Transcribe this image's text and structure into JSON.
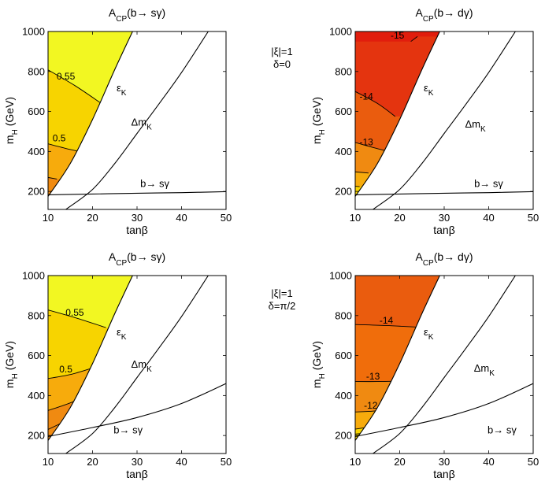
{
  "figure": {
    "parameter_labels": [
      {
        "line1": "|ξ|=1",
        "line2": "δ=0"
      },
      {
        "line1": "|ξ|=1",
        "line2": "δ=π/2"
      }
    ]
  },
  "colors": {
    "yellow_1": "#f2f722",
    "yellow_2": "#f7d400",
    "orange_1": "#f7ab0c",
    "orange_2": "#f08a11",
    "red_orange_1": "#f06d0b",
    "red_orange_2": "#ea5c0e",
    "red_1": "#e4340f",
    "red_2": "#e11d0d",
    "line": "#000000"
  },
  "chart_data": [
    {
      "type": "contour",
      "title_main": "A",
      "title_sub": "CP",
      "title_arg": "(b→ sγ)",
      "xlabel": "tanβ",
      "ylabel_main": "m",
      "ylabel_sub": "H",
      "ylabel_unit": " (GeV)",
      "xlim": [
        10,
        50
      ],
      "ylim": [
        110,
        1000
      ],
      "xticks": [
        "10",
        "20",
        "30",
        "40",
        "50"
      ],
      "yticks": [
        "200",
        "400",
        "600",
        "800",
        "1000"
      ],
      "bands": [
        {
          "color": "yellow_1",
          "from_top": 1000,
          "to_boundary": "contour_055",
          "label": "0.55"
        },
        {
          "color": "yellow_2",
          "from_boundary": "contour_055",
          "to_boundary": "contour_05",
          "label": "0.5"
        },
        {
          "color": "orange_1",
          "from_boundary": "contour_05",
          "to_boundary": "contour_045"
        },
        {
          "color": "orange_2",
          "from_boundary": "contour_045",
          "to_boundary": "bottom"
        }
      ],
      "contours": {
        "contour_055": {
          "label": "0.55",
          "points": [
            [
              10,
              808
            ],
            [
              16,
              730
            ],
            [
              22,
              640
            ]
          ]
        },
        "contour_05": {
          "label": "0.5",
          "points": [
            [
              10,
              438
            ],
            [
              14,
              415
            ],
            [
              17.5,
              398
            ]
          ]
        },
        "contour_045": {
          "label": "",
          "points": [
            [
              10,
              270
            ],
            [
              12,
              262
            ]
          ]
        }
      },
      "curves": [
        {
          "name": "epsilon_K",
          "label_main": "ε",
          "label_sub": "K",
          "points": [
            [
              10,
              175
            ],
            [
              15,
              340
            ],
            [
              20,
              560
            ],
            [
              25,
              810
            ],
            [
              29,
              1000
            ]
          ]
        },
        {
          "name": "delta_m_K",
          "label_main": "Δm",
          "label_sub": "K",
          "points": [
            [
              14,
              110
            ],
            [
              20,
              210
            ],
            [
              25,
              340
            ],
            [
              30,
              490
            ],
            [
              35,
              640
            ],
            [
              40,
              795
            ],
            [
              46,
              1000
            ]
          ]
        },
        {
          "name": "b_to_s_gamma",
          "label": "b→ sγ",
          "points": [
            [
              10,
              183
            ],
            [
              20,
              187
            ],
            [
              30,
              191
            ],
            [
              40,
              194
            ],
            [
              50,
              199
            ]
          ]
        }
      ],
      "allowed_region": "left_of_epsilon_K"
    },
    {
      "type": "contour",
      "title_main": "A",
      "title_sub": "CP",
      "title_arg": "(b→ dγ)",
      "xlabel": "tanβ",
      "ylabel_main": "m",
      "ylabel_sub": "H",
      "ylabel_unit": " (GeV)",
      "xlim": [
        10,
        50
      ],
      "ylim": [
        110,
        1000
      ],
      "xticks": [
        "10",
        "20",
        "30",
        "40",
        "50"
      ],
      "yticks": [
        "200",
        "400",
        "600",
        "800",
        "1000"
      ],
      "bands": [
        {
          "color": "red_2",
          "label": "-15"
        },
        {
          "color": "red_1",
          "label": "-14"
        },
        {
          "color": "red_orange_2",
          "label": "-13"
        },
        {
          "color": "orange_2"
        },
        {
          "color": "orange_1"
        },
        {
          "color": "yellow_2"
        }
      ],
      "contours": {
        "c_m15": {
          "label": "-15",
          "points": [
            [
              22.5,
              950
            ],
            [
              24,
              975
            ]
          ]
        },
        "c_m14": {
          "label": "-14",
          "points": [
            [
              10,
              700
            ],
            [
              15,
              640
            ],
            [
              19,
              575
            ]
          ]
        },
        "c_m13": {
          "label": "-13",
          "points": [
            [
              10,
              445
            ],
            [
              14,
              420
            ],
            [
              17.5,
              400
            ]
          ]
        },
        "c_m12": {
          "label": "",
          "points": [
            [
              10,
              298
            ],
            [
              13,
              292
            ]
          ]
        },
        "c_m11": {
          "label": "",
          "points": [
            [
              10,
              226
            ],
            [
              11,
              224
            ]
          ]
        }
      },
      "curves": [
        {
          "name": "epsilon_K",
          "label_main": "ε",
          "label_sub": "K",
          "points": [
            [
              10,
              175
            ],
            [
              15,
              340
            ],
            [
              20,
              560
            ],
            [
              25,
              810
            ],
            [
              29,
              1000
            ]
          ]
        },
        {
          "name": "delta_m_K",
          "label_main": "Δm",
          "label_sub": "K",
          "points": [
            [
              14,
              110
            ],
            [
              20,
              210
            ],
            [
              25,
              340
            ],
            [
              30,
              490
            ],
            [
              35,
              640
            ],
            [
              40,
              795
            ],
            [
              46,
              1000
            ]
          ]
        },
        {
          "name": "b_to_s_gamma",
          "label": "b→ sγ",
          "points": [
            [
              10,
              183
            ],
            [
              20,
              187
            ],
            [
              30,
              191
            ],
            [
              40,
              194
            ],
            [
              50,
              199
            ]
          ]
        }
      ],
      "allowed_region": "left_of_epsilon_K"
    },
    {
      "type": "contour",
      "title_main": "A",
      "title_sub": "CP",
      "title_arg": "(b→ sγ)",
      "xlabel": "tanβ",
      "ylabel_main": "m",
      "ylabel_sub": "H",
      "ylabel_unit": " (GeV)",
      "xlim": [
        10,
        50
      ],
      "ylim": [
        110,
        1000
      ],
      "xticks": [
        "10",
        "20",
        "30",
        "40",
        "50"
      ],
      "yticks": [
        "200",
        "400",
        "600",
        "800",
        "1000"
      ],
      "bands": [
        {
          "color": "yellow_1",
          "label": "0.55"
        },
        {
          "color": "yellow_2",
          "label": "0.5"
        },
        {
          "color": "orange_1"
        },
        {
          "color": "orange_2"
        }
      ],
      "contours": {
        "contour_055": {
          "label": "0.55",
          "points": [
            [
              10,
              828
            ],
            [
              16,
              790
            ],
            [
              23,
              740
            ]
          ]
        },
        "contour_05": {
          "label": "0.5",
          "points": [
            [
              10,
              485
            ],
            [
              15,
              505
            ],
            [
              20,
              538
            ]
          ]
        },
        "contour_045": {
          "label": "",
          "points": [
            [
              10,
              325
            ],
            [
              14,
              355
            ],
            [
              18,
              390
            ]
          ]
        },
        "contour_04": {
          "label": "",
          "points": [
            [
              10,
              230
            ],
            [
              13,
              262
            ]
          ]
        }
      },
      "curves": [
        {
          "name": "epsilon_K",
          "label_main": "ε",
          "label_sub": "K",
          "points": [
            [
              10,
              175
            ],
            [
              15,
              340
            ],
            [
              20,
              560
            ],
            [
              25,
              810
            ],
            [
              29,
              1000
            ]
          ]
        },
        {
          "name": "delta_m_K",
          "label_main": "Δm",
          "label_sub": "K",
          "points": [
            [
              14,
              110
            ],
            [
              20,
              210
            ],
            [
              25,
              340
            ],
            [
              30,
              490
            ],
            [
              35,
              640
            ],
            [
              40,
              795
            ],
            [
              46,
              1000
            ]
          ]
        },
        {
          "name": "b_to_s_gamma",
          "label": "b→ sγ",
          "points": [
            [
              10,
              195
            ],
            [
              20,
              240
            ],
            [
              30,
              290
            ],
            [
              40,
              360
            ],
            [
              50,
              460
            ]
          ]
        }
      ],
      "allowed_region": "left_of_epsilon_K"
    },
    {
      "type": "contour",
      "title_main": "A",
      "title_sub": "CP",
      "title_arg": "(b→ dγ)",
      "xlabel": "tanβ",
      "ylabel_main": "m",
      "ylabel_sub": "H",
      "ylabel_unit": " (GeV)",
      "xlim": [
        10,
        50
      ],
      "ylim": [
        110,
        1000
      ],
      "xticks": [
        "10",
        "20",
        "30",
        "40",
        "50"
      ],
      "yticks": [
        "200",
        "400",
        "600",
        "800",
        "1000"
      ],
      "bands": [
        {
          "color": "red_orange_2",
          "label": "-14"
        },
        {
          "color": "red_orange_1",
          "label": "-13"
        },
        {
          "color": "orange_2",
          "label": "-12"
        },
        {
          "color": "orange_1"
        },
        {
          "color": "yellow_2"
        }
      ],
      "contours": {
        "c_m14": {
          "label": "-14",
          "points": [
            [
              10,
              755
            ],
            [
              17,
              750
            ],
            [
              24,
              742
            ]
          ]
        },
        "c_m13": {
          "label": "-13",
          "points": [
            [
              10,
              470
            ],
            [
              15,
              470
            ],
            [
              20,
              472
            ]
          ]
        },
        "c_m12": {
          "label": "-12",
          "points": [
            [
              10,
              318
            ],
            [
              14,
              322
            ],
            [
              16.5,
              330
            ]
          ]
        },
        "c_m11": {
          "label": "",
          "points": [
            [
              10,
              232
            ],
            [
              12.5,
              240
            ]
          ]
        },
        "c_m10": {
          "label": "",
          "points": [
            [
              10,
              207
            ],
            [
              11.5,
              210
            ]
          ]
        }
      },
      "curves": [
        {
          "name": "epsilon_K",
          "label_main": "ε",
          "label_sub": "K",
          "points": [
            [
              10,
              175
            ],
            [
              15,
              340
            ],
            [
              20,
              560
            ],
            [
              25,
              810
            ],
            [
              29,
              1000
            ]
          ]
        },
        {
          "name": "delta_m_K",
          "label_main": "Δm",
          "label_sub": "K",
          "points": [
            [
              14,
              110
            ],
            [
              20,
              210
            ],
            [
              25,
              340
            ],
            [
              30,
              490
            ],
            [
              35,
              640
            ],
            [
              40,
              795
            ],
            [
              46,
              1000
            ]
          ]
        },
        {
          "name": "b_to_s_gamma",
          "label": "b→ sγ",
          "points": [
            [
              10,
              195
            ],
            [
              20,
              240
            ],
            [
              30,
              290
            ],
            [
              40,
              360
            ],
            [
              50,
              460
            ]
          ]
        }
      ],
      "allowed_region": "left_of_epsilon_K"
    }
  ]
}
